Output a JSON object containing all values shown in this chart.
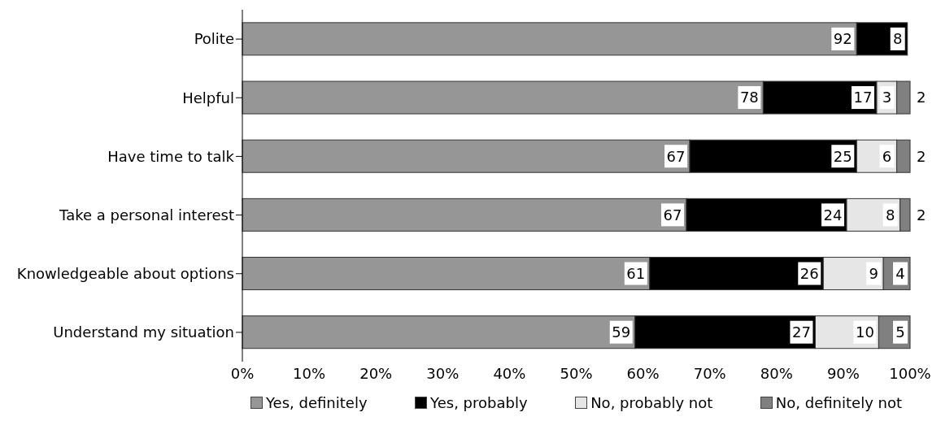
{
  "chart_data": {
    "type": "bar",
    "orientation": "horizontal",
    "stacked": true,
    "categories": [
      "Polite",
      "Helpful",
      "Have time to talk",
      "Take a personal interest",
      "Knowledgeable about options",
      "Understand my situation"
    ],
    "series": [
      {
        "name": "Yes, definitely",
        "color": "#969696",
        "values": [
          92,
          78,
          67,
          66.5,
          61,
          58.8
        ],
        "value_labels": [
          "92",
          "78",
          "67",
          "67",
          "61",
          "59"
        ]
      },
      {
        "name": "Yes, probably",
        "color": "#000000",
        "values": [
          7.6,
          17,
          25,
          24,
          26,
          27
        ],
        "value_labels": [
          "8",
          "17",
          "25",
          "24",
          "26",
          "27"
        ]
      },
      {
        "name": "No, probably not",
        "color": "#e6e6e6",
        "values": [
          null,
          3,
          6,
          8,
          9,
          9.5
        ],
        "value_labels": [
          null,
          "3",
          "6",
          "8",
          "9",
          "10"
        ]
      },
      {
        "name": "No, definitely not",
        "color": "#808080",
        "values": [
          null,
          2,
          2,
          1.5,
          4,
          4.7
        ],
        "value_labels": [
          null,
          "2",
          "2",
          "2",
          "4",
          "5"
        ]
      }
    ],
    "xlim": [
      0,
      100
    ],
    "xticks": [
      {
        "value": 0,
        "label": "0%"
      },
      {
        "value": 10,
        "label": "10%"
      },
      {
        "value": 20,
        "label": "20%"
      },
      {
        "value": 30,
        "label": "30%"
      },
      {
        "value": 40,
        "label": "40%"
      },
      {
        "value": 50,
        "label": "50%"
      },
      {
        "value": 60,
        "label": "60%"
      },
      {
        "value": 70,
        "label": "70%"
      },
      {
        "value": 80,
        "label": "80%"
      },
      {
        "value": 90,
        "label": "90%"
      },
      {
        "value": 100,
        "label": "100%"
      }
    ],
    "legend": "bottom"
  }
}
